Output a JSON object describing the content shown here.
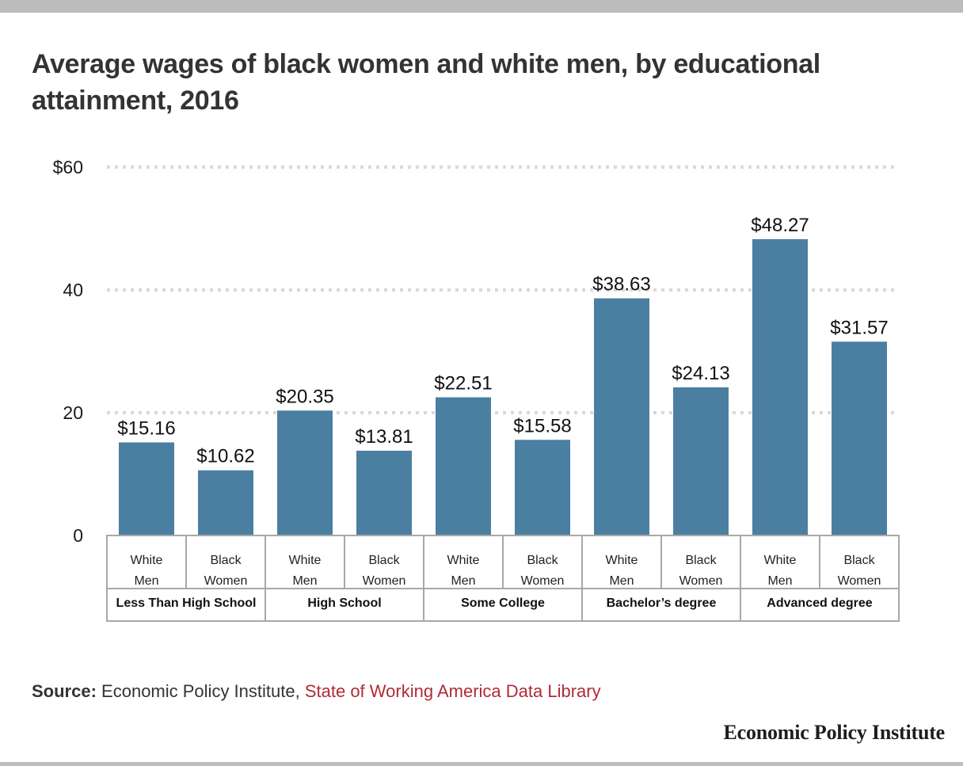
{
  "title": "Average wages of black women and white men, by educational attainment, 2016",
  "source": {
    "label": "Source:",
    "text": "Economic Policy Institute,",
    "link_text": "State of Working America Data Library"
  },
  "brand": "Economic Policy Institute",
  "colors": {
    "bar": "#4a7fa1",
    "link": "#b12a35",
    "grid": "#d9d9d9",
    "table_border": "#a8a8a8"
  },
  "chart_data": {
    "type": "bar",
    "title": "Average wages of black women and white men, by educational attainment, 2016",
    "xlabel": "",
    "ylabel": "",
    "ylim": [
      0,
      60
    ],
    "yticks": [
      0,
      20,
      40,
      60
    ],
    "ytick_labels": [
      "0",
      "20",
      "40",
      "$60"
    ],
    "grid": true,
    "groups": [
      "Less Than High School",
      "High School",
      "Some College",
      "Bachelor’s degree",
      "Advanced degree"
    ],
    "subcategories": [
      {
        "line1": "White",
        "line2": "Men"
      },
      {
        "line1": "Black",
        "line2": "Women"
      }
    ],
    "series": [
      {
        "name": "White Men",
        "values": [
          15.16,
          20.35,
          22.51,
          38.63,
          48.27
        ]
      },
      {
        "name": "Black Women",
        "values": [
          10.62,
          13.81,
          15.58,
          24.13,
          31.57
        ]
      }
    ],
    "bars": [
      {
        "group": "Less Than High School",
        "sub": "White Men",
        "value": 15.16,
        "label": "$15.16"
      },
      {
        "group": "Less Than High School",
        "sub": "Black Women",
        "value": 10.62,
        "label": "$10.62"
      },
      {
        "group": "High School",
        "sub": "White Men",
        "value": 20.35,
        "label": "$20.35"
      },
      {
        "group": "High School",
        "sub": "Black Women",
        "value": 13.81,
        "label": "$13.81"
      },
      {
        "group": "Some College",
        "sub": "White Men",
        "value": 22.51,
        "label": "$22.51"
      },
      {
        "group": "Some College",
        "sub": "Black Women",
        "value": 15.58,
        "label": "$15.58"
      },
      {
        "group": "Bachelor’s degree",
        "sub": "White Men",
        "value": 38.63,
        "label": "$38.63"
      },
      {
        "group": "Bachelor’s degree",
        "sub": "Black Women",
        "value": 24.13,
        "label": "$24.13"
      },
      {
        "group": "Advanced degree",
        "sub": "White Men",
        "value": 48.27,
        "label": "$48.27"
      },
      {
        "group": "Advanced degree",
        "sub": "Black Women",
        "value": 31.57,
        "label": "$31.57"
      }
    ]
  }
}
